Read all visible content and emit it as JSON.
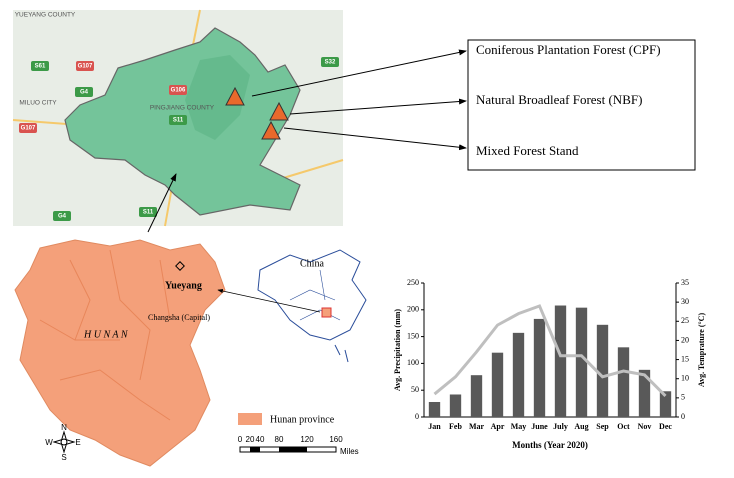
{
  "top_map": {
    "places": [
      "YUEYANG COUNTY",
      "MILUO CITY",
      "PINGJIANG COUNTY"
    ],
    "roads": [
      "S61",
      "G107",
      "G4",
      "G106",
      "S11",
      "S32",
      "G107",
      "G4",
      "S11"
    ],
    "sites": [
      "Coniferous Plantation Forest (CPF)",
      "Natural Broadleaf Forest (NBF)",
      "Mixed Forest Stand"
    ]
  },
  "province_map": {
    "province": "H U N A N",
    "city": "Yueyang",
    "capital": "Changsha (Capital)",
    "country": "China",
    "legend": "Hunan province",
    "scale": [
      "0",
      "20",
      "40",
      "80",
      "120",
      "160"
    ],
    "scale_unit": "Miles",
    "compass": [
      "N",
      "E",
      "S",
      "W"
    ]
  },
  "chart_data": {
    "type": "bar",
    "x_label": "Months (Year 2020)",
    "y_label": "Avg. Precipitation (mm)",
    "y2_label": "Avg. Temprature (°C)",
    "categories": [
      "Jan",
      "Feb",
      "Mar",
      "Apr",
      "May",
      "June",
      "July",
      "Aug",
      "Sep",
      "Oct",
      "Nov",
      "Dec"
    ],
    "series": [
      {
        "type": "bar",
        "color": "#595959",
        "values": [
          28,
          42,
          78,
          120,
          157,
          183,
          208,
          204,
          172,
          130,
          88,
          48
        ]
      },
      {
        "type": "line",
        "axis": "y2",
        "color": "#bfbfbf",
        "values": [
          6,
          10.5,
          17,
          24,
          27,
          29,
          16,
          16,
          10.5,
          12,
          11,
          5.5
        ]
      }
    ],
    "ylim": [
      0,
      250
    ],
    "yticks": [
      0,
      50,
      100,
      150,
      200,
      250
    ],
    "y2lim": [
      0,
      35
    ],
    "y2ticks": [
      0,
      5,
      10,
      15,
      20,
      25,
      30,
      35
    ]
  }
}
